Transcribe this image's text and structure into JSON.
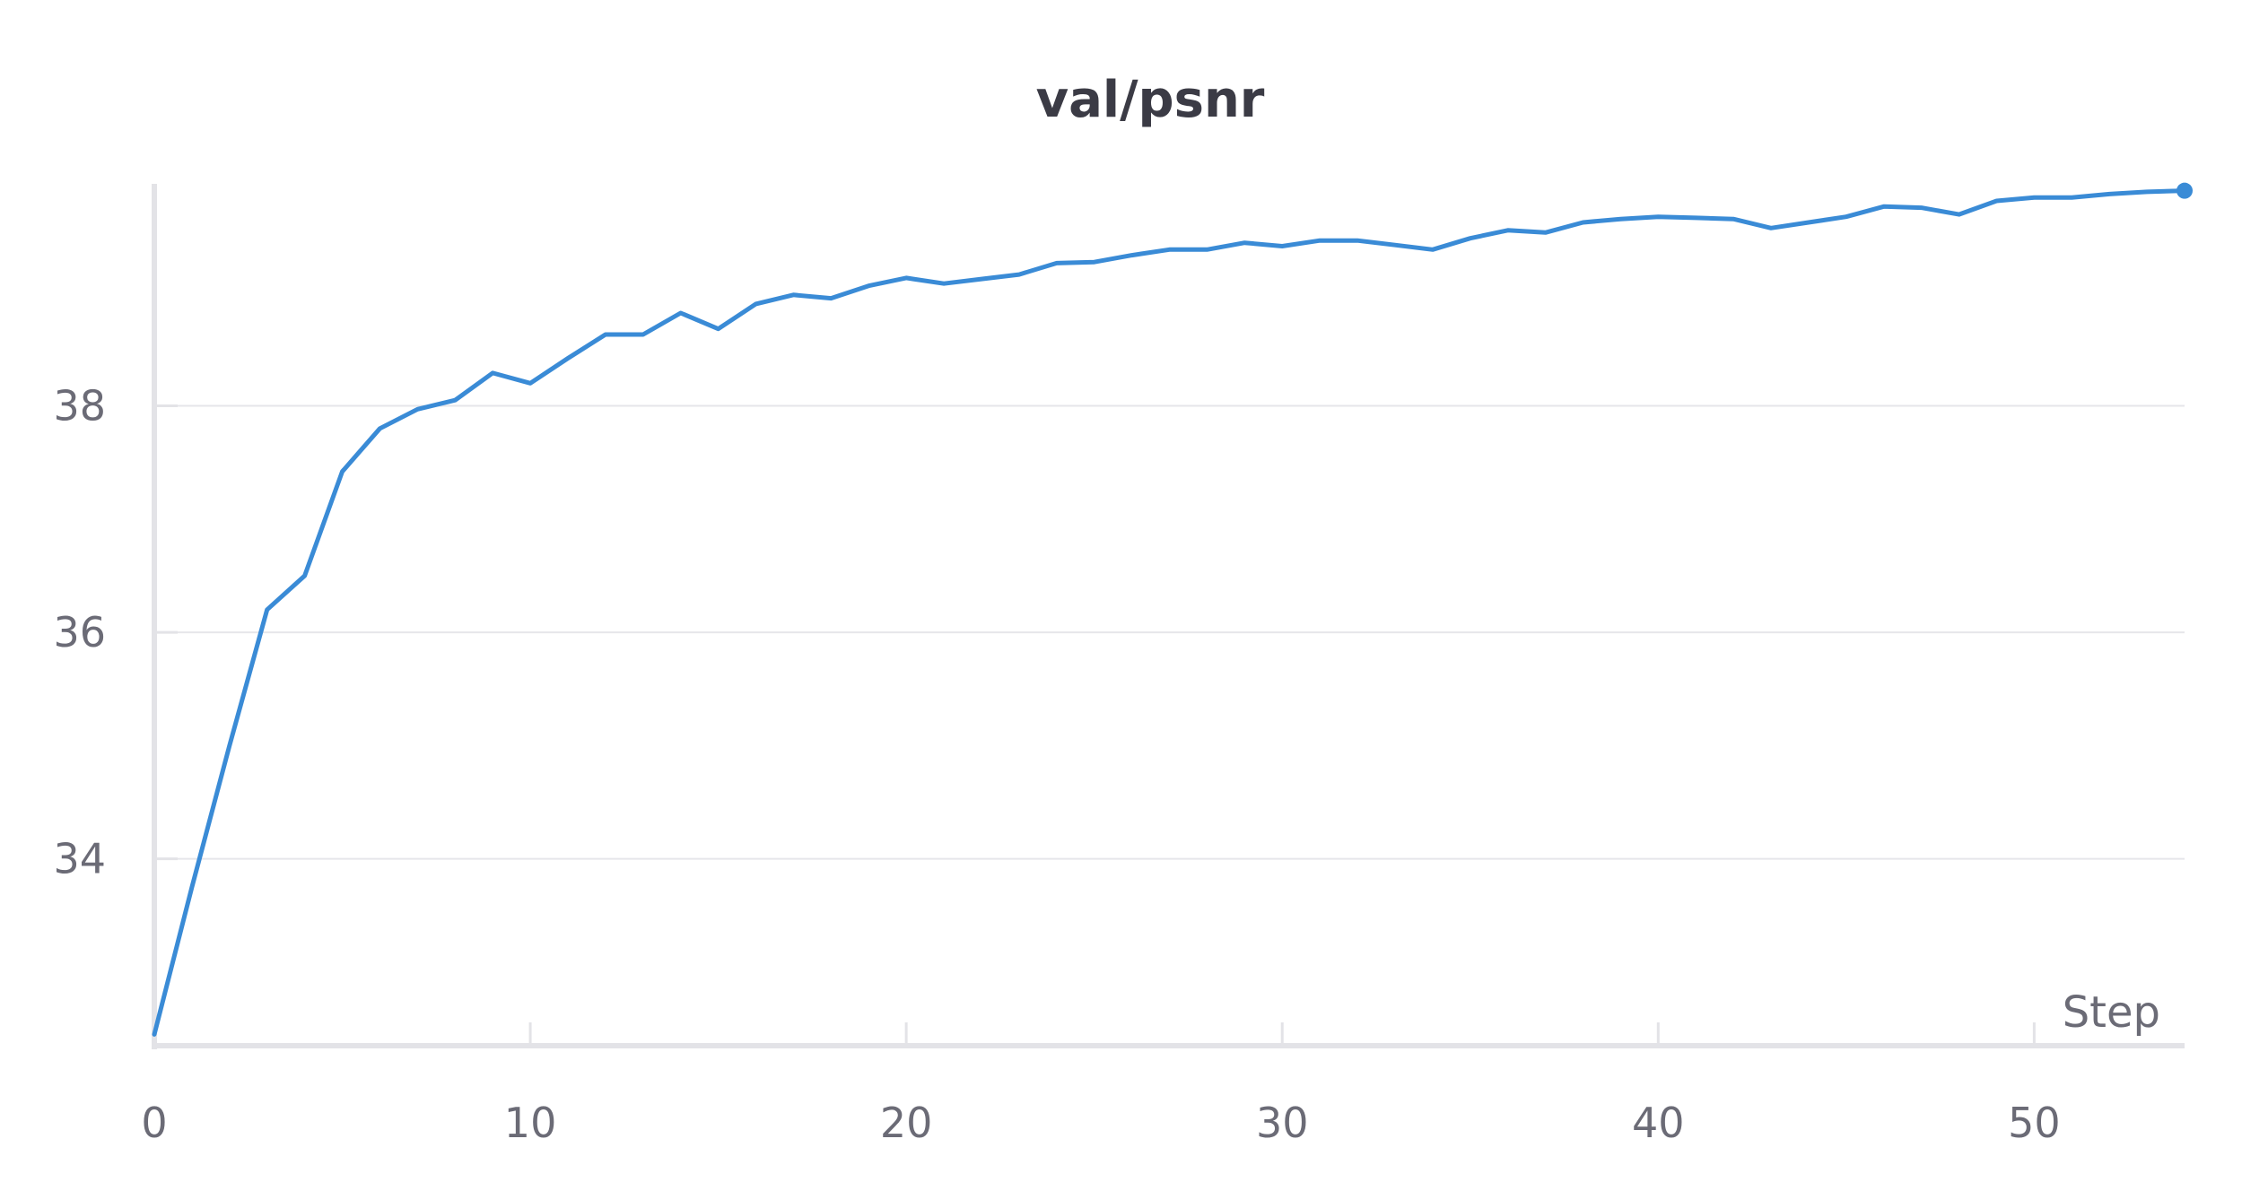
{
  "chart_data": {
    "type": "line",
    "title": "val/psnr",
    "xlabel": "Step",
    "ylabel": "",
    "xlim": [
      0,
      54
    ],
    "ylim": [
      32.35,
      40.0
    ],
    "x_ticks": [
      0,
      10,
      20,
      30,
      40,
      50
    ],
    "y_ticks": [
      34,
      36,
      38
    ],
    "grid": true,
    "legend": "none",
    "series": [
      {
        "color": "#3a8bd6",
        "x": [
          0,
          1,
          2,
          3,
          4,
          5,
          6,
          7,
          8,
          9,
          10,
          11,
          12,
          13,
          14,
          15,
          16,
          17,
          18,
          19,
          20,
          21,
          22,
          23,
          24,
          25,
          26,
          27,
          28,
          29,
          30,
          31,
          32,
          33,
          34,
          35,
          36,
          37,
          38,
          39,
          40,
          41,
          42,
          43,
          44,
          45,
          46,
          47,
          48,
          49,
          50,
          51,
          52,
          53,
          54
        ],
        "y": [
          32.45,
          33.75,
          35.0,
          36.2,
          36.5,
          37.42,
          37.8,
          37.97,
          38.05,
          38.29,
          38.2,
          38.42,
          38.63,
          38.63,
          38.82,
          38.68,
          38.9,
          38.98,
          38.95,
          39.06,
          39.13,
          39.08,
          39.12,
          39.16,
          39.26,
          39.27,
          39.33,
          39.38,
          39.38,
          39.44,
          39.41,
          39.46,
          39.46,
          39.42,
          39.38,
          39.48,
          39.55,
          39.53,
          39.62,
          39.65,
          39.67,
          39.66,
          39.65,
          39.57,
          39.62,
          39.67,
          39.76,
          39.75,
          39.69,
          39.81,
          39.84,
          39.84,
          39.87,
          39.89,
          39.9
        ]
      }
    ]
  },
  "colors": {
    "line": "#3a8bd6",
    "grid": "#e6e6ea",
    "axis": "#e3e3e7"
  }
}
